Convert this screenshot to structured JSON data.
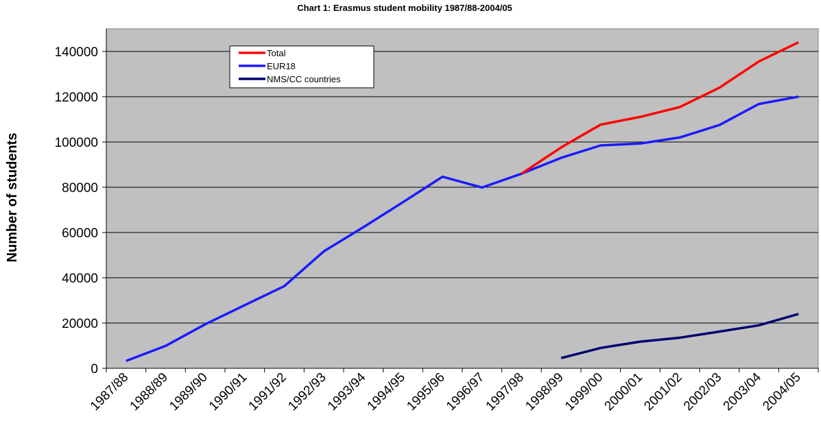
{
  "chart_data": {
    "type": "line",
    "title": "Chart 1: Erasmus student mobility 1987/88-2004/05",
    "y_label": "Number of students",
    "categories": [
      "1987/88",
      "1988/89",
      "1989/90",
      "1990/91",
      "1991/92",
      "1992/93",
      "1993/94",
      "1994/95",
      "1995/96",
      "1996/97",
      "1997/98",
      "1998/99",
      "1999/00",
      "2000/01",
      "2001/02",
      "2002/03",
      "2003/04",
      "2004/05"
    ],
    "series": [
      {
        "name": "Total",
        "color": "#ff0000",
        "values": [
          null,
          null,
          null,
          null,
          null,
          null,
          null,
          null,
          null,
          null,
          85999,
          97601,
          107666,
          111092,
          115432,
          123957,
          135586,
          144037
        ]
      },
      {
        "name": "EUR18",
        "color": "#1a1aff",
        "values": [
          3244,
          9914,
          19456,
          27906,
          36314,
          51694,
          62362,
          73407,
          84642,
          79874,
          85999,
          93000,
          98500,
          99300,
          102000,
          107500,
          116800,
          120000
        ]
      },
      {
        "name": "NMS/CC countries",
        "color": "#000070",
        "values": [
          null,
          null,
          null,
          null,
          null,
          null,
          null,
          null,
          null,
          null,
          null,
          4500,
          9000,
          11800,
          13500,
          16200,
          19000,
          24000
        ]
      }
    ],
    "ylim": [
      0,
      150000
    ],
    "yticks": [
      0,
      20000,
      40000,
      60000,
      80000,
      100000,
      120000,
      140000
    ],
    "grid": true,
    "legend": "top-left"
  }
}
